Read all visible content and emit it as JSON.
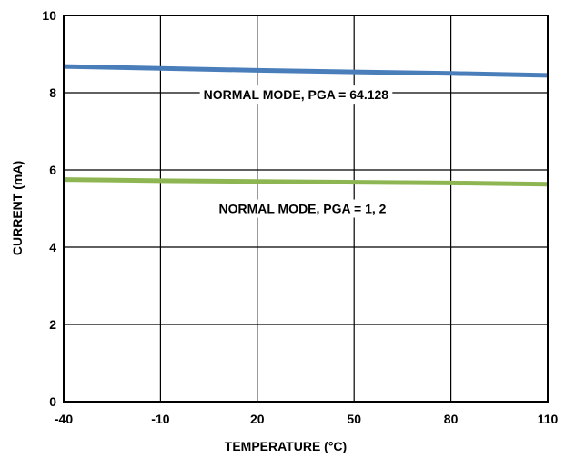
{
  "chart_data": {
    "type": "line",
    "title": "",
    "xlabel": "TEMPERATURE (°C)",
    "ylabel": "CURRENT (mA)",
    "xlim": [
      -40,
      110
    ],
    "ylim": [
      0,
      10
    ],
    "x_ticks": [
      -40,
      -10,
      20,
      50,
      80,
      110
    ],
    "y_ticks": [
      0,
      2,
      4,
      6,
      8,
      10
    ],
    "x_tick_labels": [
      "-40",
      "-10",
      "20",
      "50",
      "80",
      "110"
    ],
    "y_tick_labels": [
      "0",
      "2",
      "4",
      "6",
      "8",
      "10"
    ],
    "grid": true,
    "series": [
      {
        "name": "NORMAL MODE, PGA = 64.128",
        "color": "#4A7EBB",
        "x": [
          -40,
          -10,
          20,
          50,
          80,
          110
        ],
        "y": [
          8.68,
          8.63,
          8.58,
          8.54,
          8.5,
          8.45
        ]
      },
      {
        "name": "NORMAL MODE, PGA = 1, 2",
        "color": "#8DB653",
        "x": [
          -40,
          -10,
          20,
          50,
          80,
          110
        ],
        "y": [
          5.75,
          5.72,
          5.7,
          5.68,
          5.66,
          5.63
        ]
      }
    ],
    "annotations": [
      {
        "text": "NORMAL MODE, PGA = 64.128",
        "x": 32,
        "y": 7.95
      },
      {
        "text": "NORMAL MODE, PGA = 1, 2",
        "x": 34,
        "y": 5.0
      }
    ]
  }
}
